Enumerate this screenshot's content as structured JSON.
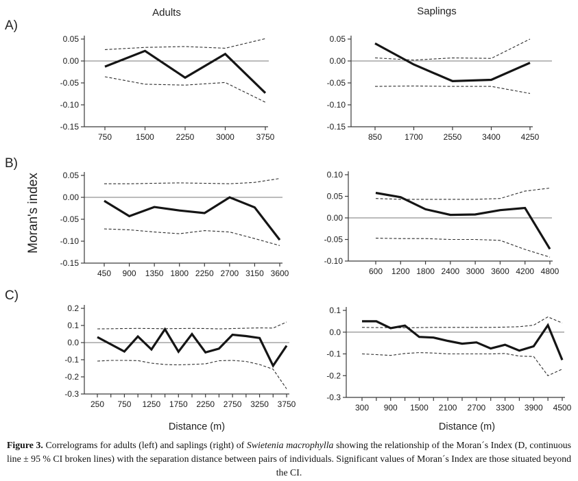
{
  "page": {
    "column_titles": {
      "left": "Adults",
      "right": "Saplings"
    },
    "row_labels": [
      "A)",
      "B)",
      "C)"
    ],
    "y_axis_label": "Moran's index",
    "x_axis_label_left": "Distance (m)",
    "x_axis_label_right": "Distance (m)"
  },
  "caption": {
    "label": "Figure 3.",
    "text_before_species": " Correlograms for adults (left) and saplings (right) of ",
    "species": "Swietenia macrophylla",
    "text_after_species": " showing the relationship of the Moran´s Index (D, continuous line ± 95 % CI broken lines) with the separation distance between pairs of individuals. Significant values of Moran´s Index are those situated beyond the CI."
  },
  "colors": {
    "moran_line": "#151515",
    "ci_line": "#2c2c2c",
    "axis": "#3a3a3a",
    "zero_line": "#777777",
    "background": "#ffffff"
  },
  "chart_data": [
    {
      "id": "adults-A",
      "type": "line",
      "column": "Adults",
      "row": "A)",
      "xlabel": "Distance (m)",
      "ylabel": "Moran's index",
      "ylim": [
        -0.15,
        0.05
      ],
      "ytick_values": [
        0.05,
        0.0,
        -0.05,
        -0.1,
        -0.15
      ],
      "ytick_labels": [
        "0.05",
        "0.00",
        "-0.05",
        "-0.10",
        "-0.15"
      ],
      "xtick_values": [
        750,
        1500,
        2250,
        3000,
        3750
      ],
      "xtick_labels": [
        "750",
        "1500",
        "2250",
        "3000",
        "3750"
      ],
      "x": [
        750,
        1500,
        2250,
        3000,
        3750
      ],
      "series": [
        {
          "name": "Moran's index (D)",
          "style": "solid",
          "values": [
            -0.013,
            0.023,
            -0.038,
            0.016,
            -0.073
          ]
        },
        {
          "name": "95% CI upper",
          "style": "dashed",
          "values": [
            0.026,
            0.031,
            0.033,
            0.029,
            0.051
          ]
        },
        {
          "name": "95% CI lower",
          "style": "dashed",
          "values": [
            -0.036,
            -0.053,
            -0.055,
            -0.049,
            -0.094
          ]
        }
      ]
    },
    {
      "id": "saplings-A",
      "type": "line",
      "column": "Saplings",
      "row": "A)",
      "xlabel": "Distance (m)",
      "ylabel": "Moran's index",
      "ylim": [
        -0.15,
        0.05
      ],
      "ytick_values": [
        0.05,
        0.0,
        -0.05,
        -0.1,
        -0.15
      ],
      "ytick_labels": [
        "0.05",
        "0.00",
        "-0.05",
        "-0.10",
        "-0.15"
      ],
      "xtick_values": [
        850,
        1700,
        2550,
        3400,
        4250
      ],
      "xtick_labels": [
        "850",
        "1700",
        "2550",
        "3400",
        "4250"
      ],
      "x": [
        850,
        1700,
        2550,
        3400,
        4250
      ],
      "series": [
        {
          "name": "Moran's index (D)",
          "style": "solid",
          "values": [
            0.04,
            -0.008,
            -0.046,
            -0.043,
            -0.004
          ]
        },
        {
          "name": "95% CI upper",
          "style": "dashed",
          "values": [
            0.007,
            0.002,
            0.007,
            0.006,
            0.05
          ]
        },
        {
          "name": "95% CI lower",
          "style": "dashed",
          "values": [
            -0.058,
            -0.057,
            -0.058,
            -0.058,
            -0.074
          ]
        }
      ]
    },
    {
      "id": "adults-B",
      "type": "line",
      "column": "Adults",
      "row": "B)",
      "xlabel": "Distance (m)",
      "ylabel": "Moran's index",
      "ylim": [
        -0.15,
        0.05
      ],
      "ytick_values": [
        0.05,
        0.0,
        -0.05,
        -0.1,
        -0.15
      ],
      "ytick_labels": [
        "0.05",
        "0.00",
        "-0.05",
        "-0.10",
        "-0.15"
      ],
      "xtick_values": [
        450,
        900,
        1350,
        1800,
        2250,
        2700,
        3150,
        3600
      ],
      "xtick_labels": [
        "450",
        "900",
        "1350",
        "1800",
        "2250",
        "2700",
        "3150",
        "3600"
      ],
      "x": [
        450,
        900,
        1350,
        1800,
        2250,
        2700,
        3150,
        3600
      ],
      "series": [
        {
          "name": "Moran's index (D)",
          "style": "solid",
          "values": [
            -0.008,
            -0.043,
            -0.022,
            -0.03,
            -0.036,
            0.0,
            -0.023,
            -0.097
          ]
        },
        {
          "name": "95% CI upper",
          "style": "dashed",
          "values": [
            0.031,
            0.031,
            0.032,
            0.033,
            0.032,
            0.031,
            0.034,
            0.043
          ]
        },
        {
          "name": "95% CI lower",
          "style": "dashed",
          "values": [
            -0.072,
            -0.074,
            -0.079,
            -0.083,
            -0.076,
            -0.079,
            -0.094,
            -0.11
          ]
        }
      ]
    },
    {
      "id": "saplings-B",
      "type": "line",
      "column": "Saplings",
      "row": "B)",
      "xlabel": "Distance (m)",
      "ylabel": "Moran's index",
      "ylim": [
        -0.1,
        0.1
      ],
      "ytick_values": [
        0.1,
        0.05,
        0.0,
        -0.05,
        -0.1
      ],
      "ytick_labels": [
        "0.10",
        "0.05",
        "0.00",
        "-0.05",
        "-0.10"
      ],
      "xtick_values": [
        600,
        1200,
        1800,
        2400,
        3000,
        3600,
        4200,
        4800
      ],
      "xtick_labels": [
        "600",
        "1200",
        "1800",
        "2400",
        "3000",
        "3600",
        "4200",
        "4800"
      ],
      "x": [
        600,
        1200,
        1800,
        2400,
        3000,
        3600,
        4200,
        4800
      ],
      "series": [
        {
          "name": "Moran's index (D)",
          "style": "solid",
          "values": [
            0.058,
            0.048,
            0.02,
            0.007,
            0.008,
            0.018,
            0.023,
            -0.072
          ]
        },
        {
          "name": "95% CI upper",
          "style": "dashed",
          "values": [
            0.045,
            0.043,
            0.043,
            0.043,
            0.043,
            0.045,
            0.062,
            0.069
          ]
        },
        {
          "name": "95% CI lower",
          "style": "dashed",
          "values": [
            -0.047,
            -0.048,
            -0.048,
            -0.05,
            -0.05,
            -0.052,
            -0.073,
            -0.091
          ]
        }
      ]
    },
    {
      "id": "adults-C",
      "type": "line",
      "column": "Adults",
      "row": "C)",
      "xlabel": "Distance (m)",
      "ylabel": "Moran's index",
      "ylim": [
        -0.3,
        0.2
      ],
      "ytick_values": [
        0.2,
        0.1,
        0.0,
        -0.1,
        -0.2,
        -0.3
      ],
      "ytick_labels": [
        "0.2",
        "0.1",
        "0.0",
        "-0.1",
        "-0.2",
        "-0.3"
      ],
      "xtick_values": [
        250,
        500,
        750,
        1000,
        1250,
        1500,
        1750,
        2000,
        2250,
        2500,
        2750,
        3000,
        3250,
        3500,
        3750
      ],
      "xtick_labels": [
        "250",
        "",
        "750",
        "",
        "1250",
        "",
        "1750",
        "",
        "2250",
        "",
        "2750",
        "",
        "3250",
        "",
        "3750"
      ],
      "x": [
        250,
        500,
        750,
        1000,
        1250,
        1500,
        1750,
        2000,
        2250,
        2500,
        2750,
        3000,
        3250,
        3500,
        3750
      ],
      "series": [
        {
          "name": "Moran's index (D)",
          "style": "solid",
          "values": [
            0.032,
            -0.01,
            -0.052,
            0.036,
            -0.04,
            0.078,
            -0.053,
            0.05,
            -0.057,
            -0.035,
            0.046,
            0.038,
            0.027,
            -0.135,
            -0.018
          ]
        },
        {
          "name": "95% CI upper",
          "style": "dashed",
          "values": [
            0.08,
            0.081,
            0.082,
            0.083,
            0.082,
            0.081,
            0.082,
            0.083,
            0.082,
            0.08,
            0.082,
            0.084,
            0.086,
            0.085,
            0.12
          ]
        },
        {
          "name": "95% CI lower",
          "style": "dashed",
          "values": [
            -0.108,
            -0.104,
            -0.104,
            -0.105,
            -0.12,
            -0.128,
            -0.13,
            -0.127,
            -0.124,
            -0.106,
            -0.104,
            -0.11,
            -0.128,
            -0.155,
            -0.27
          ]
        }
      ]
    },
    {
      "id": "saplings-C",
      "type": "line",
      "column": "Saplings",
      "row": "C)",
      "xlabel": "Distance (m)",
      "ylabel": "Moran's index",
      "ylim": [
        -0.3,
        0.1
      ],
      "ytick_values": [
        0.1,
        0.0,
        -0.1,
        -0.2,
        -0.3
      ],
      "ytick_labels": [
        "0.1",
        "0.0",
        "-0.1",
        "-0.2",
        "-0.3"
      ],
      "xtick_values": [
        300,
        600,
        900,
        1200,
        1500,
        1800,
        2100,
        2400,
        2700,
        3000,
        3300,
        3600,
        3900,
        4200,
        4500
      ],
      "xtick_labels": [
        "300",
        "",
        "900",
        "",
        "1500",
        "",
        "2100",
        "",
        "2700",
        "",
        "3300",
        "",
        "3900",
        "",
        "4500"
      ],
      "x": [
        300,
        600,
        900,
        1200,
        1500,
        1800,
        2100,
        2400,
        2700,
        3000,
        3300,
        3600,
        3900,
        4200,
        4500
      ],
      "series": [
        {
          "name": "Moran's index (D)",
          "style": "solid",
          "values": [
            0.05,
            0.05,
            0.018,
            0.03,
            -0.022,
            -0.025,
            -0.04,
            -0.053,
            -0.047,
            -0.075,
            -0.058,
            -0.085,
            -0.065,
            0.032,
            -0.128
          ]
        },
        {
          "name": "95% CI upper",
          "style": "dashed",
          "values": [
            0.022,
            0.021,
            0.021,
            0.02,
            0.021,
            0.022,
            0.022,
            0.022,
            0.022,
            0.022,
            0.023,
            0.025,
            0.032,
            0.07,
            0.042
          ]
        },
        {
          "name": "95% CI lower",
          "style": "dashed",
          "values": [
            -0.1,
            -0.103,
            -0.107,
            -0.098,
            -0.094,
            -0.096,
            -0.1,
            -0.1,
            -0.1,
            -0.1,
            -0.098,
            -0.11,
            -0.112,
            -0.2,
            -0.17
          ]
        }
      ]
    }
  ]
}
